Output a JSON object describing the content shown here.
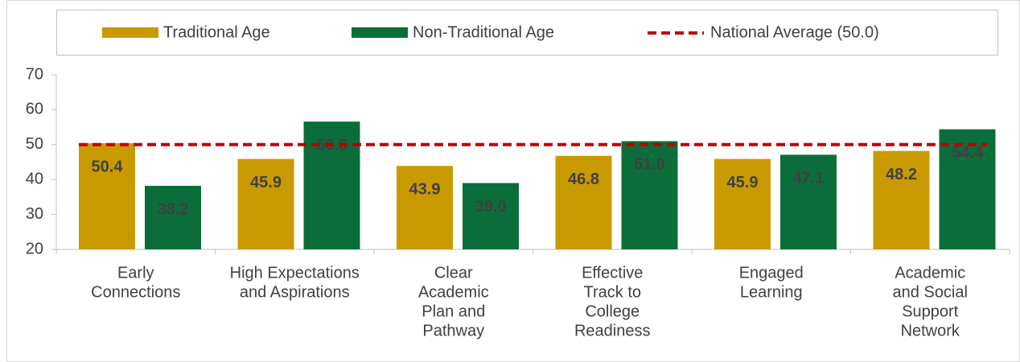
{
  "chart_data": {
    "type": "bar",
    "categories": [
      [
        "Early",
        "Connections"
      ],
      [
        "High Expectations",
        "and Aspirations"
      ],
      [
        "Clear",
        "Academic",
        "Plan and",
        "Pathway"
      ],
      [
        "Effective",
        "Track to",
        "College",
        "Readiness"
      ],
      [
        "Engaged",
        "Learning"
      ],
      [
        "Academic",
        "and Social",
        "Support",
        "Network"
      ]
    ],
    "series": [
      {
        "name": "Traditional Age",
        "color": "#c99a00",
        "label_color": "#404040",
        "values": [
          50.4,
          45.9,
          43.9,
          46.8,
          45.9,
          48.2
        ],
        "value_labels": [
          "50.4",
          "45.9",
          "43.9",
          "46.8",
          "45.9",
          "48.2"
        ]
      },
      {
        "name": "Non-Traditional Age",
        "color": "#0b6e3a",
        "label_color": "#ffffff",
        "values": [
          38.2,
          56.6,
          39.0,
          51.0,
          47.1,
          54.4
        ],
        "value_labels": [
          "38.2",
          "56.6",
          "39.0",
          "51.0",
          "47.1",
          "54.4"
        ]
      }
    ],
    "reference_line": {
      "name": "National Average (50.0)",
      "value": 50,
      "color": "#c00000"
    },
    "ylim": [
      20,
      70
    ],
    "yticks": [
      20,
      30,
      40,
      50,
      60,
      70
    ],
    "grid": false,
    "legend": "top"
  }
}
